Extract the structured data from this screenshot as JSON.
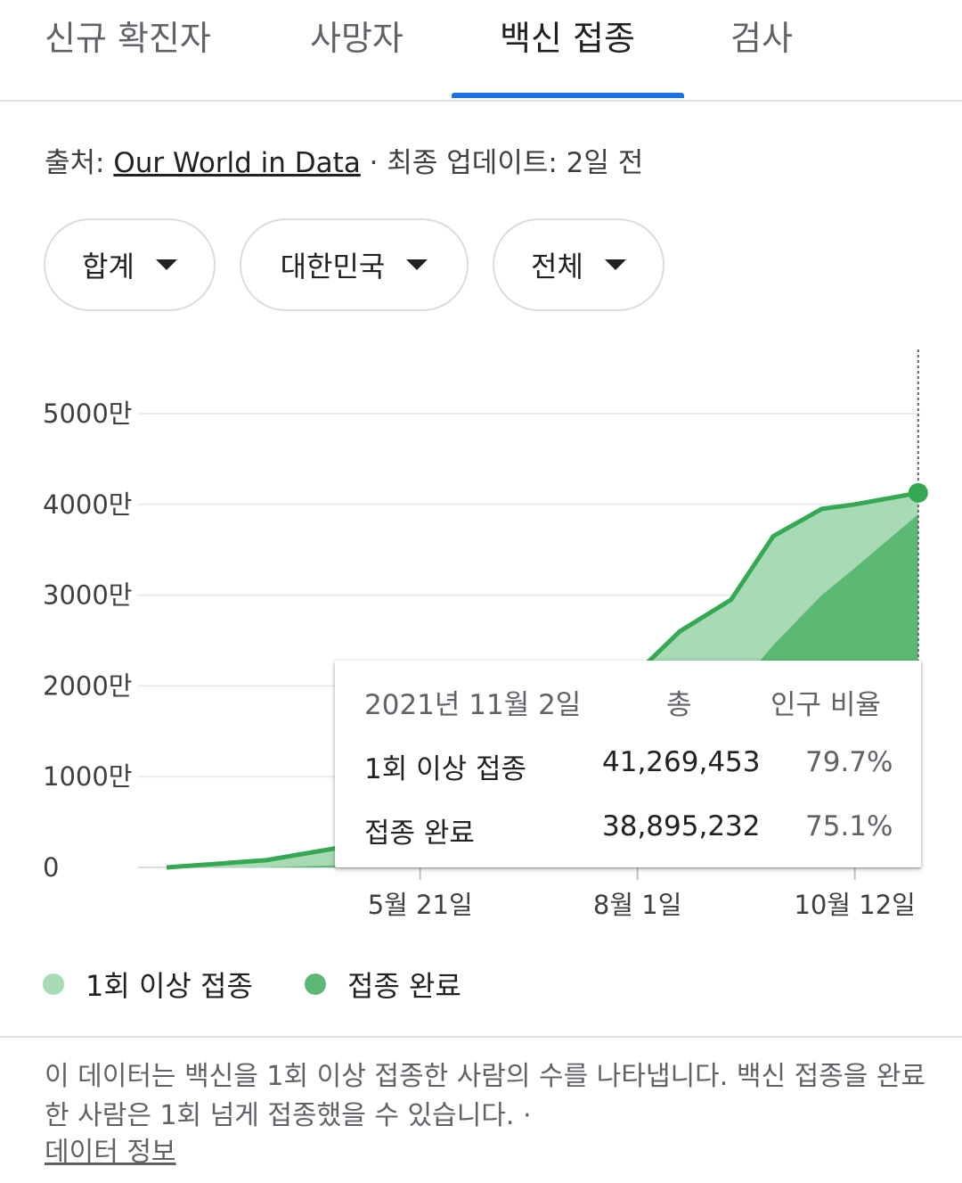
{
  "tabs": [
    {
      "label": "신규 확진자"
    },
    {
      "label": "사망자"
    },
    {
      "label": "백신 접종"
    },
    {
      "label": "검사"
    }
  ],
  "source": {
    "prefix": "출처: ",
    "link": "Our World in Data",
    "updated": " · 최종 업데이트: 2일 전"
  },
  "filters": [
    {
      "label": "합계"
    },
    {
      "label": "대한민국"
    },
    {
      "label": "전체"
    }
  ],
  "colors": {
    "accent": "#1a73e8",
    "line": "#34a853",
    "series1_fill": "#a8dab5",
    "series2_fill": "#5bb974"
  },
  "chart_data": {
    "type": "area",
    "x": [
      "2021-02-26",
      "2021-03-31",
      "2021-04-30",
      "2021-05-21",
      "2021-06-15",
      "2021-07-01",
      "2021-07-15",
      "2021-08-01",
      "2021-08-15",
      "2021-09-01",
      "2021-09-15",
      "2021-10-01",
      "2021-10-12",
      "2021-11-02"
    ],
    "x_ticks": [
      "5월 21일",
      "8월 1일",
      "10월 12일"
    ],
    "y_ticks": [
      "0",
      "1000만",
      "2000만",
      "3000만",
      "4000만",
      "5000만"
    ],
    "ylim": [
      0,
      50000000
    ],
    "series": [
      {
        "name": "1회 이상 접종",
        "values": [
          0,
          800000,
          2500000,
          4000000,
          14000000,
          15500000,
          17000000,
          21500000,
          26000000,
          29500000,
          36500000,
          39500000,
          40000000,
          41269453
        ]
      },
      {
        "name": "접종 완료",
        "values": [
          0,
          0,
          300000,
          1000000,
          3000000,
          5000000,
          6500000,
          7500000,
          13500000,
          19000000,
          24500000,
          30000000,
          33000000,
          38895232
        ]
      }
    ],
    "legend_position": "bottom-left",
    "grid": true
  },
  "tooltip": {
    "date": "2021년 11월 2일",
    "col_total": "총",
    "col_ratio": "인구 비율",
    "rows": [
      {
        "label": "1회 이상 접종",
        "total": "41,269,453",
        "ratio": "79.7%"
      },
      {
        "label": "접종 완료",
        "total": "38,895,232",
        "ratio": "75.1%"
      }
    ]
  },
  "legend": [
    {
      "label": "1회 이상 접종"
    },
    {
      "label": "접종 완료"
    }
  ],
  "note": {
    "text": "이 데이터는 백신을 1회 이상 접종한 사람의 수를 나타냅니다. 백신 접종을 완료한 사람은 1회 넘게 접종했을 수 있습니다. ·",
    "link": "데이터 정보"
  }
}
